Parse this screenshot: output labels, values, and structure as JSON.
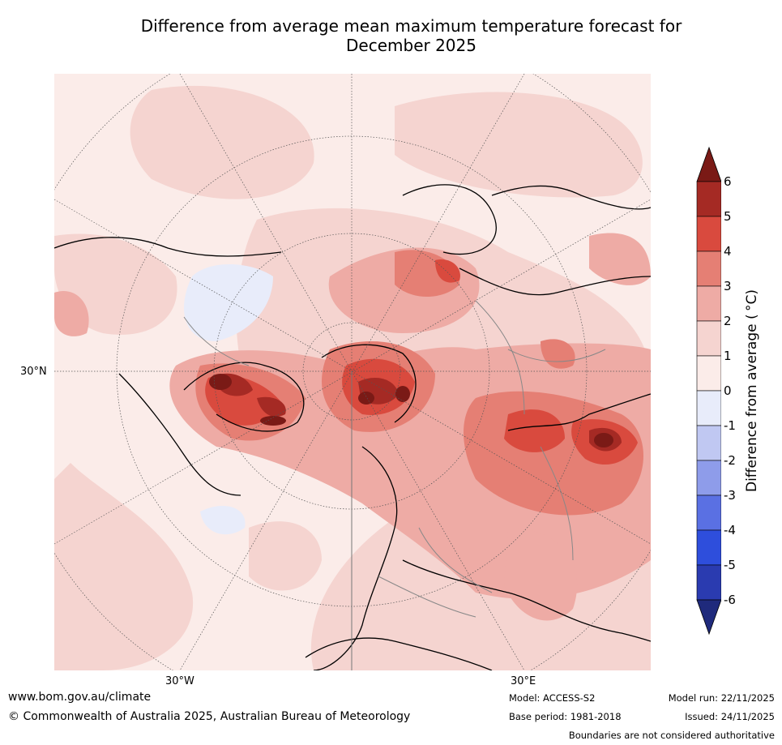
{
  "title": {
    "line1": "Difference from average mean maximum temperature forecast for",
    "line2": "December 2025"
  },
  "map": {
    "lat_label": "30°N",
    "lon_labels": [
      "30°W",
      "30°E"
    ],
    "projection": "north polar stereographic"
  },
  "colorbar": {
    "label": "Difference from average ( °C)",
    "ticks": [
      "6",
      "5",
      "4",
      "3",
      "2",
      "1",
      "0",
      "-1",
      "-2",
      "-3",
      "-4",
      "-5",
      "-6"
    ],
    "colors": [
      "#7a1a16",
      "#a52a24",
      "#d94a3e",
      "#e57f74",
      "#eeaba5",
      "#f5d4d0",
      "#fbece9",
      "#e8ecfa",
      "#c0c8f2",
      "#8e9cea",
      "#5a70e3",
      "#2e4edc",
      "#2a3bb0",
      "#1f2a7c"
    ]
  },
  "footer": {
    "website": "www.bom.gov.au/climate",
    "copyright": "© Commonwealth of Australia 2025, Australian Bureau of Meteorology",
    "model": "Model: ACCESS-S2",
    "base_period": "Base period: 1981-2018",
    "model_run": "Model run: 22/11/2025",
    "issued": "Issued: 24/11/2025",
    "disclaimer": "Boundaries are not considered authoritative"
  }
}
